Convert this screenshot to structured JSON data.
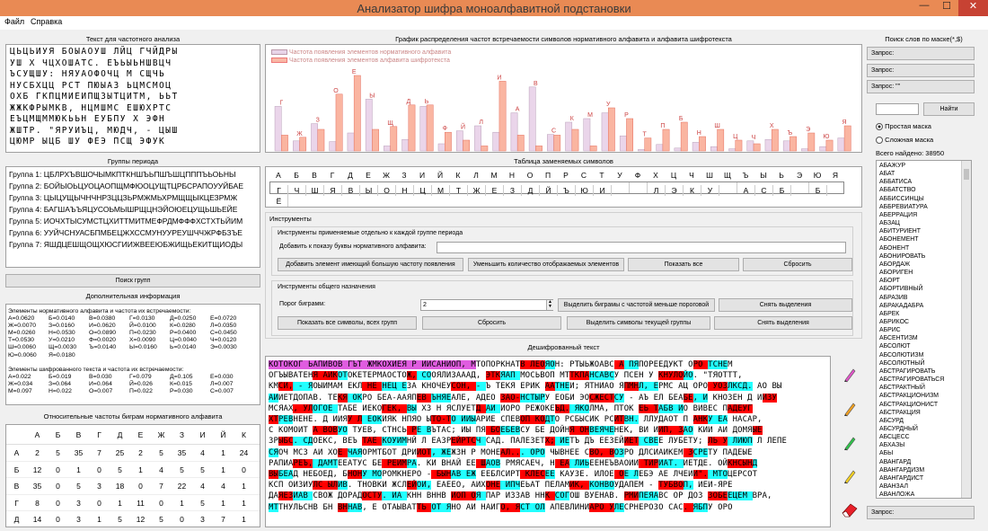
{
  "title": "Анализатор шифра моноалфавитной подстановки",
  "window": {
    "minimize": "—",
    "maximize": "☐",
    "close": "✕"
  },
  "menu": [
    "Файл",
    "Справка"
  ],
  "left": {
    "text_label": "Текст для частотного анализа",
    "text_lines": [
      "ЦЬЦЬИУЯ БОЫАОУШ ЛЙЦ ГЧЙДРЫ",
      "УШ Х ЧЦХОШАТС. ЕЪЬЫЬНШВЦЧ",
      "ЪСУЩШУ: НЯУАОФОЧЦ М СЩЧЬ",
      "НУСБХЦЦ РСТ ПЮЫАЗ ЬЦМСМОЦ",
      "ОХБ ГКПЦМИЕИПЩЗЫТЦИТМ, ЬЬТ",
      "ЖЖКФРЫМКВ, НЦМШМС ЕШЮХРТС",
      "ЕЪЦМЩММЮКЬЬН ЕУБПУ Х ЭФН",
      "ЖШТР. \"ЯРУИЪЦ, МЮДЧ, - ЦЫШ",
      "ЦЮМР ЫЦБ ШУ ФЕЭ ПСЩ ЭФУК"
    ],
    "groups_label": "Группы периода",
    "groups": [
      {
        "name": "Группа 1:",
        "text": "ЦБЛРХЪВШОЧЫМКПТКНШЪЬПШЪШЦПППЪЬОЬНЫ"
      },
      {
        "name": "Группа 2:",
        "text": "БОЙЫОЬЦУОЦАОПЩМФЮОЦУЩТЦРБСРАПОУУЙБАЕ"
      },
      {
        "name": "Группа 3:",
        "text": "ЦЫЦУЩЫЧНЧНРЗЦЦЗЬРМЖМЬХРМЩЩЫКЦЕЗРМЖ"
      },
      {
        "name": "Группа 4:",
        "text": "БАГШАЪЪЯЦУСОЬМЫШРЩЦНЭЙОЮЕЦУЩЬШЬЕЙЕ"
      },
      {
        "name": "Группа 5:",
        "text": "ИОЧХТЫСУМСТЦХИТТМИТМЕФРДМФФФХСТХТЬЙИМ"
      },
      {
        "name": "Группа 6:",
        "text": "УУЙЧСНУАСБПМБЕЦЖХССМУНУУРЕУШЧЧЖРФБЗЪЕ"
      },
      {
        "name": "Группа 7:",
        "text": "ЯШДЦЕШЩОЩХЮСГИИЖВЕЕЮБЖИЩЬЕКИТЩИОДЫ"
      }
    ],
    "search_groups_btn": "Поиск групп",
    "info_label": "Дополнительная информация",
    "info_header1": "Элементы нормативного алфавита и частота их встречаемости:",
    "info_rows1": [
      [
        "А=0.0620",
        "Б=0.0140",
        "В=0.0380",
        "Г=0.0130",
        "Д=0.0250",
        "Е=0.0720"
      ],
      [
        "Ж=0.0070",
        "З=0.0160",
        "И=0.0620",
        "Й=0.0100",
        "К=0.0280",
        "Л=0.0350"
      ],
      [
        "М=0.0260",
        "Н=0.0530",
        "О=0.0890",
        "П=0.0230",
        "Р=0.0400",
        "С=0.0450"
      ],
      [
        "Т=0.0530",
        "У=0.0210",
        "Ф=0.0020",
        "Х=0.0090",
        "Ц=0.0040",
        "Ч=0.0120"
      ],
      [
        "Ш=0.0060",
        "Щ=0.0030",
        "Ъ=0.0140",
        "Ы=0.0160",
        "Ь=0.0140",
        "Э=0.0030"
      ],
      [
        "Ю=0.0060",
        "Я=0.0180",
        "",
        "",
        "",
        ""
      ]
    ],
    "info_header2": "Элементы шифрованного текста и частота их встречаемости:",
    "info_rows2": [
      [
        "А=0.022",
        "Б=0.019",
        "В=0.030",
        "Г=0.079",
        "Д=0.105",
        "Е=0.030"
      ],
      [
        "Ж=0.034",
        "З=0.064",
        "И=0.064",
        "Й=0.026",
        "К=0.015",
        "Л=0.007"
      ],
      [
        "М=0.097",
        "Н=0.022",
        "О=0.007",
        "П=0.022",
        "Р=0.030",
        "С=0.007"
      ]
    ],
    "bigram_label": "Относительные частоты биграм нормативного алфавита",
    "bigram_header": [
      "",
      "А",
      "Б",
      "В",
      "Г",
      "Д",
      "Е",
      "Ж",
      "З",
      "И",
      "Й",
      "К"
    ],
    "bigram_rows": [
      [
        "А",
        "2",
        "5",
        "35",
        "7",
        "25",
        "2",
        "5",
        "35",
        "4",
        "1",
        "24"
      ],
      [
        "Б",
        "12",
        "0",
        "1",
        "0",
        "5",
        "1",
        "4",
        "5",
        "5",
        "1",
        "0"
      ],
      [
        "В",
        "35",
        "0",
        "5",
        "3",
        "18",
        "0",
        "7",
        "22",
        "4",
        "4",
        "1"
      ],
      [
        "Г",
        "8",
        "0",
        "3",
        "0",
        "1",
        "11",
        "0",
        "1",
        "5",
        "1",
        "1"
      ],
      [
        "Д",
        "14",
        "0",
        "3",
        "1",
        "5",
        "12",
        "5",
        "0",
        "3",
        "7",
        "1"
      ]
    ]
  },
  "center": {
    "chart_label": "График распределения частот встречаемости символов нормативного алфавита и алфавита шифротекста",
    "legend1": "Частота появления элементов нормативного алфавита",
    "legend2": "Частота появления элементов алфавита шифротекста",
    "chart_data": {
      "type": "bar",
      "categories": [
        "А",
        "Б",
        "В",
        "Г",
        "Д",
        "Е",
        "Ж",
        "З",
        "И",
        "Й",
        "К",
        "Л",
        "М",
        "Н",
        "О",
        "П",
        "Р",
        "С",
        "Т",
        "У",
        "Ф",
        "Х",
        "Ц",
        "Ч",
        "Ш",
        "Щ",
        "Ъ",
        "Ы",
        "Ь",
        "Э",
        "Ю",
        "Я"
      ],
      "series": [
        {
          "name": "Частота появления элементов нормативного алфавита",
          "values": [
            0.062,
            0.014,
            0.038,
            0.013,
            0.025,
            0.072,
            0.007,
            0.016,
            0.062,
            0.01,
            0.028,
            0.035,
            0.026,
            0.053,
            0.089,
            0.023,
            0.04,
            0.045,
            0.053,
            0.021,
            0.002,
            0.009,
            0.004,
            0.012,
            0.006,
            0.003,
            0.014,
            0.016,
            0.014,
            0.003,
            0.006,
            0.018
          ]
        },
        {
          "name": "Частота появления элементов алфавита шифротекста",
          "values": [
            0.022,
            0.019,
            0.03,
            0.079,
            0.105,
            0.03,
            0.034,
            0.064,
            0.064,
            0.026,
            0.015,
            0.007,
            0.097,
            0.022,
            0.007,
            0.022,
            0.03,
            0.007,
            0.06,
            0.045,
            0.018,
            0.03,
            0.04,
            0.02,
            0.03,
            0.015,
            0.01,
            0.03,
            0.02,
            0.025,
            0.015,
            0.035
          ]
        }
      ],
      "bar_labels": [
        "Г",
        "Ж",
        "З",
        "О",
        "Е",
        "Ы",
        "Щ",
        "Д",
        "Ь",
        "Ф",
        "Й",
        "Л",
        "И",
        "А",
        "В",
        "С",
        "К",
        "М",
        "У",
        "Р",
        "Т",
        "П",
        "Б",
        "Н",
        "Ш",
        "Ц",
        "Ч",
        "Х",
        "Ъ",
        "Э",
        "Ю",
        "Я"
      ]
    },
    "subst_label": "Таблица заменяемых символов",
    "subst_top": [
      "А",
      "Б",
      "В",
      "Г",
      "Д",
      "Е",
      "Ж",
      "З",
      "И",
      "Й",
      "К",
      "Л",
      "М",
      "Н",
      "О",
      "П",
      "Р",
      "С",
      "Т",
      "У",
      "Ф",
      "Х",
      "Ц",
      "Ч",
      "Ш",
      "Щ",
      "Ъ",
      "Ы",
      "Ь",
      "Э",
      "Ю",
      "Я"
    ],
    "subst_bottom": [
      "Г",
      "Ч",
      "Ш",
      "Я",
      "В",
      "Ы",
      "О",
      "Н",
      "Ц",
      "М",
      "Т",
      "Ж",
      "Е",
      "З",
      "Д",
      "Й",
      "Ъ",
      "Ю",
      "И",
      "",
      "",
      "Л",
      "Э",
      "К",
      "У",
      "",
      "А",
      "С",
      "Б",
      "",
      "Б",
      "Ё"
    ],
    "tools_label": "Инструменты",
    "tools_group1": "Инструменты применяемые отдельно к каждой группе периода",
    "add_letter_label": "Добавить к показу буквы нормативного алфавита:",
    "btn_add_elem": "Добавить элемент имеющий большую частоту появления",
    "btn_reduce": "Уменьшить количество отображаемых элементов",
    "btn_show_all": "Показать все",
    "btn_reset1": "Сбросить",
    "tools_group2": "Инструменты общего назначения",
    "bigram_threshold_label": "Порог биграмм:",
    "bigram_threshold_value": "2",
    "btn_highlight_bigrams": "Выделить биграмы с частотой меньше пороговой",
    "btn_clear_sel1": "Снять выделения",
    "btn_show_all_symbols": "Показать все символы, всех групп",
    "btn_reset2": "Сбросить",
    "btn_highlight_group": "Выделить символы текущей группы",
    "btn_clear_sel2": "Снять выделения",
    "decrypted_label": "Дешифрованный текст",
    "decrypted_lines": [
      "КОТОКОГ ЬАПИВОВ ГЪТ ЖМКОХИЕЯ Р ИИСАНИОП, МТОПОРКНАТВ ЛЕОЯОН: РТЫЬЖОАВС А ПЯПОРЕЕДУКТ ОРО ТСНЕМ",
      "ОГЪЫВАТЕНЯ АИКОТОКЕТЕРМАОСТОЖ, СООЯЛИЗАААД, ЭТКЯАП МОСЬВОП МТТКПАНСАВСУ ПСЕН У КНУЛОЙО. \"ТЯОТТТ,",
      "КМСИ, - ЯОЫИМАМ ЕКЛ НЕ НЕЦ ЕЗА КНОЧЕУСОН, - Ъ ТЕКЯ ЕРИК ААТНЕИ; ЯТНИАО ЯПМНЛ, ЕРМС АЦ ОРО УОЗЛКСД. АО ВЫ",
      "АИИЕТДОПАВ. ТЕКЯ ОКРО БЕА-ААЯПЕВ ЪНЯЕАЛЕ, АДЕО ЗАО-НСТЫРУ ЕОБИ ЭОСЖЕСТСУ - АЪ ЕЛ БЕАБЕ, И КНОЗЕН Д ИИЗУ",
      "МСЯАХ, УЛОГОЕ ТАБЕ ИЕКОГЕК, ВЫ ХЗ Н ЯСЛУЕТД АИ ИОРО РЕЖОКЕЪД. ЯКОЛМА, ПТОК ЕЬ ТАБВ ИО ВИВЕС ПАДЕУГ",
      "ХТРЕВНЕНЕ. Д ИИЯУ Л ЕОКИЯК НПЯО ЫТО-ТО ИИЫАРИЕ СПЕВОП КОДТО РСБЫСИК РСИТВН. ЛЛУДАОТ П АНКУ ЕА НАСАР,",
      "С КОМОИТ А ВОВУО ТУЕВ, СТНСЬ РЕ ВЪТАС; ИЫ ПЯ БОЕБЕВСУ БЕ ДОЙНЯ ОНВЕЯЧЕНЕК, ВИ ИИП, ЗАО КИИ АИ ДОМЯЫЕ",
      "ЗРЫБС. СДОЕКС, ВЕЪ ТАЕ КОУИМНЙ Л ЕАЗРЕЙРТСЧ САД. ПАЛЕЗЕТХ; ИЕТЪ ДЪ ЕЕЗЕЙИЕТ СВЕЕ ЛУБЕТУ; ЛЬ У ЛИЮП Л ЛЕПЕ",
      "СЯОЧ МСЗ АИ ХОЕ ЧАЯОРМТБОТ ДРИИОТ, ЖЕЖЗН Р МОНЕАЛ... ОРО ЧЫВНЕЕ СВО, ВОЗРО ДЛСИАИКЕМ ЗСРЕТУ ПАДЕЫЕ",
      "РАПИАРЕЪ, ДАМТЕЕАТУС БЕ РЕИМРА. КИ ВНАЙ ЕЕ ШАОВ РМЯСАЕЧ, Н ЕА ЛИЬЕЕНЕЪВАОИИ ТИРИАТ. ИЕТДЕ. ОЙКНСЫНД",
      "ВЫБЕАД НЕБОЕД, БНОНУ МОРОМКНЕРО - БЫНАВ ЕЖ ЕЕБЛСИРТ КЛЕСЕЕ КАУЗЕ. ИЛОЕ ОЕ ЛЕБЭ АЕ ЛЧЕИИ\". МТОЦЕРСОТ",
      "КСП ОИЗИУЛС ЫЛИВ. ТНОВКИ ЖСЛЕЙОИ, ЕАЕЕО, АИХОНЕ ИПЧЕЬАТ ПЕЛАМИК, КОНВОУДАПЕМ - ТУБВОП, ИЕИ-ЯРЕ",
      "ДАЯЕЗИАВ СВОЖ ДОРАДОСТУ. ИА КНН ВННВ ИОП ОЯ ПАР ИЗЗАВ ННК СОГОШ ВУЕНАВ. РМИПЕЯАВС ОР ДОЗ ЗОБЕЕЦЕМ ВРА,",
      "МТТНУЛЬСНВ БН ВННАВ, Е ОТАЫВАТТЬ ОТ ЯНО АИ НАИГО, ЯСТ ОЛ АПЕВЛИНИАРО УЛЕСРНЕРОЗО САС. ЯБПУ ОРО"
    ]
  },
  "right": {
    "mask_label": "Поиск слов по маске(*,$)",
    "query1": "Запрос:",
    "query2": "Запрос:",
    "query3": "Запрос: \"\"",
    "find_btn": "Найти",
    "radio1": "Простая маска",
    "radio2": "Сложная маска",
    "found_label": "Всего найдено: 38950",
    "words": [
      "АБАЖУР",
      "АБАТ",
      "АББАТИСА",
      "АББАТСТВО",
      "АББИССИНЦЫ",
      "АББРЕВИАТУРА",
      "АБЕРРАЦИЯ",
      "АБЗАЦ",
      "АБИТУРИЕНТ",
      "АБОНЕМЕНТ",
      "АБОНЕНТ",
      "АБОНИРОВАТЬ",
      "АБОРДАЖ",
      "АБОРИГЕН",
      "АБОРТ",
      "АБОРТИВНЫЙ",
      "АБРАЗИВ",
      "АБРАКАДАБРА",
      "АБРЕК",
      "АБРИКОС",
      "АБРИС",
      "АБСЕНТИЗМ",
      "АБСОЛЮТ",
      "АБСОЛЮТИЗМ",
      "АБСОЛЮТНЫЙ",
      "АБСТРАГИРОВАТЬ",
      "АБСТРАГИРОВАТЬСЯ",
      "АБСТРАКТНЫЙ",
      "АБСТРАКЦИОНИЗМ",
      "АБСТРАКЦИОНИСТ",
      "АБСТРАКЦИЯ",
      "АБСУРД",
      "АБСУРДНЫЙ",
      "АБСЦЕСС",
      "АБХАЗЫ",
      "АБЫ",
      "АВАНГАРД",
      "АВАНГАРДИЗМ",
      "АВАНГАРДИСТ",
      "АВАНЗАЛ",
      "АВАНЛОЖА"
    ],
    "query_bottom": "Запрос:"
  }
}
